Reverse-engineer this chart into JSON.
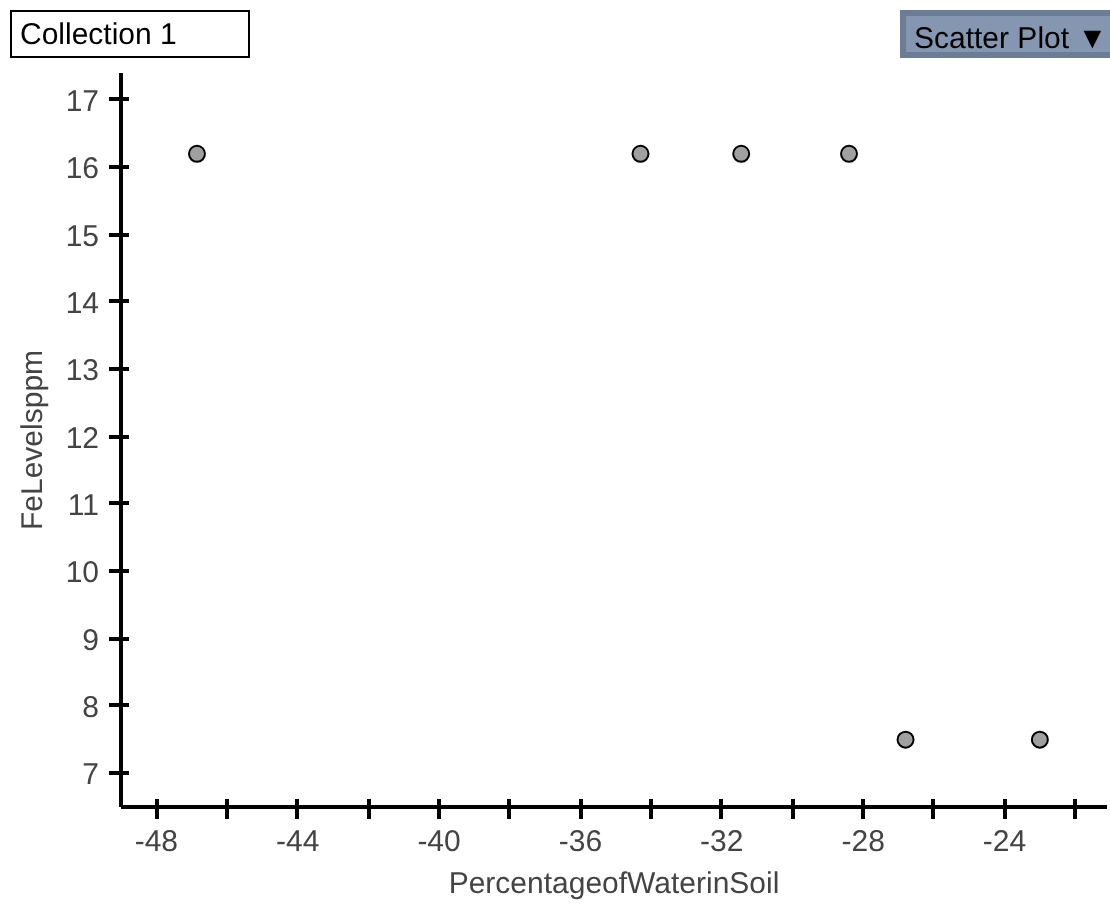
{
  "chart_data": {
    "type": "scatter",
    "title": "Collection 1",
    "annotations": [
      "Scatter Plot ▼"
    ],
    "xlabel": "PercentageofWaterinSoil",
    "ylabel": "FeLevelsppm",
    "x": [
      -46.85,
      -34.3,
      -31.45,
      -28.4,
      -26.8,
      -23.0
    ],
    "series": [
      {
        "color": "#a0a0a0",
        "values": [
          16.2,
          16.2,
          16.2,
          16.2,
          7.5,
          7.5
        ]
      }
    ],
    "xlim": [
      -49,
      -21.1
    ],
    "ylim": [
      6.5,
      17.4
    ],
    "xticks": [
      -48,
      {
        "value": -46,
        "label": null
      },
      -44,
      {
        "value": -42,
        "label": null
      },
      -40,
      {
        "value": -38,
        "label": null
      },
      -36,
      {
        "value": -34,
        "label": null
      },
      -32,
      {
        "value": -30,
        "label": null
      },
      -28,
      {
        "value": -26,
        "label": null
      },
      -24,
      {
        "value": -22,
        "label": null
      }
    ],
    "yticks": [
      7,
      8,
      9,
      10,
      11,
      12,
      13,
      14,
      15,
      16,
      17
    ],
    "grid": false,
    "marker": "circle"
  }
}
